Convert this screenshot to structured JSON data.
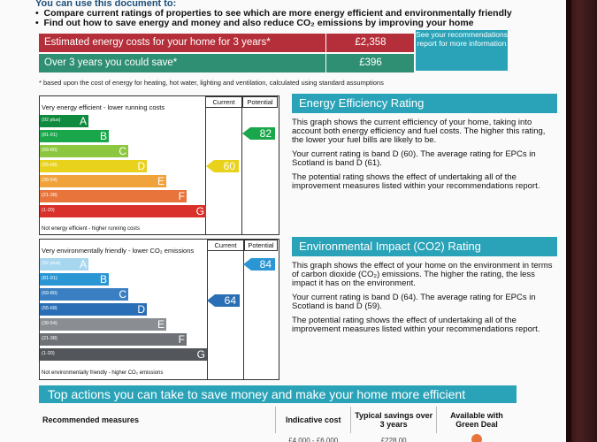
{
  "intro": {
    "heading": "You can use this document to:",
    "bullets": [
      "Compare current ratings of properties to see which are more energy efficient and environmentally friendly",
      "Find out how to save energy and money and also reduce CO₂ emissions by improving your home"
    ]
  },
  "costs": {
    "estimated_label": "Estimated energy costs for your home for 3 years*",
    "estimated_value": "£2,358",
    "save_label": "Over 3 years you could save*",
    "save_value": "£396",
    "see_box": "See your recommendations report for more information",
    "footnote": "* based upon the cost of energy for heating, hot water, lighting and ventilation, calculated using standard assumptions"
  },
  "energy_chart": {
    "top_note": "Very energy efficient - lower running costs",
    "bottom_note": "Not energy efficient - higher running costs",
    "col_current": "Current",
    "col_potential": "Potential",
    "bands": [
      {
        "range": "(92 plus)",
        "letter": "A",
        "color": "#0f8a3e"
      },
      {
        "range": "(81-91)",
        "letter": "B",
        "color": "#1aa64a"
      },
      {
        "range": "(69-80)",
        "letter": "C",
        "color": "#8dc63f"
      },
      {
        "range": "(55-68)",
        "letter": "D",
        "color": "#e9d21b"
      },
      {
        "range": "(39-54)",
        "letter": "E",
        "color": "#f0a23b"
      },
      {
        "range": "(21-38)",
        "letter": "F",
        "color": "#e8743b"
      },
      {
        "range": "(1-20)",
        "letter": "G",
        "color": "#d9302c"
      }
    ],
    "current": "60",
    "potential": "82",
    "current_color": "#e9d21b",
    "potential_color": "#1aa64a"
  },
  "env_chart": {
    "top_note": "Very environmentally friendly - lower CO₂ emissions",
    "bottom_note": "Not environmentally friendly - higher CO₂ emissions",
    "col_current": "Current",
    "col_potential": "Potential",
    "bands": [
      {
        "range": "(92 plus)",
        "letter": "A",
        "color": "#a7d6ef"
      },
      {
        "range": "(81-91)",
        "letter": "B",
        "color": "#2a96d3"
      },
      {
        "range": "(69-80)",
        "letter": "C",
        "color": "#3a7fc2"
      },
      {
        "range": "(55-68)",
        "letter": "D",
        "color": "#2a6fb5"
      },
      {
        "range": "(39-54)",
        "letter": "E",
        "color": "#8a8e92"
      },
      {
        "range": "(21-38)",
        "letter": "F",
        "color": "#6e7276"
      },
      {
        "range": "(1-20)",
        "letter": "G",
        "color": "#53575b"
      }
    ],
    "current": "64",
    "potential": "84",
    "current_color": "#2a6fb5",
    "potential_color": "#2a96d3"
  },
  "eer_panel": {
    "title": "Energy Efficiency Rating",
    "p1": "This graph shows the current efficiency of your home, taking into account both energy efficiency and fuel costs. The higher this rating, the lower your fuel bills are likely to be.",
    "p2": "Your current rating is band D (60). The average rating for EPCs in Scotland is band D (61).",
    "p3": "The potential rating shows the effect of undertaking all of the improvement measures listed within your recommendations report."
  },
  "eir_panel": {
    "title": "Environmental Impact (CO2) Rating",
    "p1": "This graph shows the effect of your home on the environment in terms of carbon dioxide (CO₂) emissions. The higher the rating, the less impact it has on the environment.",
    "p2": "Your current rating is band D (64). The average rating for EPCs in Scotland is band D (59).",
    "p3": "The potential rating shows the effect of undertaking all of the improvement measures listed within your recommendations report."
  },
  "actions": {
    "title": "Top actions you can take to save money and make your home more efficient",
    "headers": [
      "Recommended measures",
      "Indicative cost",
      "Typical savings over 3 years",
      "Available with Green Deal"
    ],
    "partial_row": [
      "",
      "£4,000 - £6,000",
      "£228.00",
      ""
    ]
  }
}
